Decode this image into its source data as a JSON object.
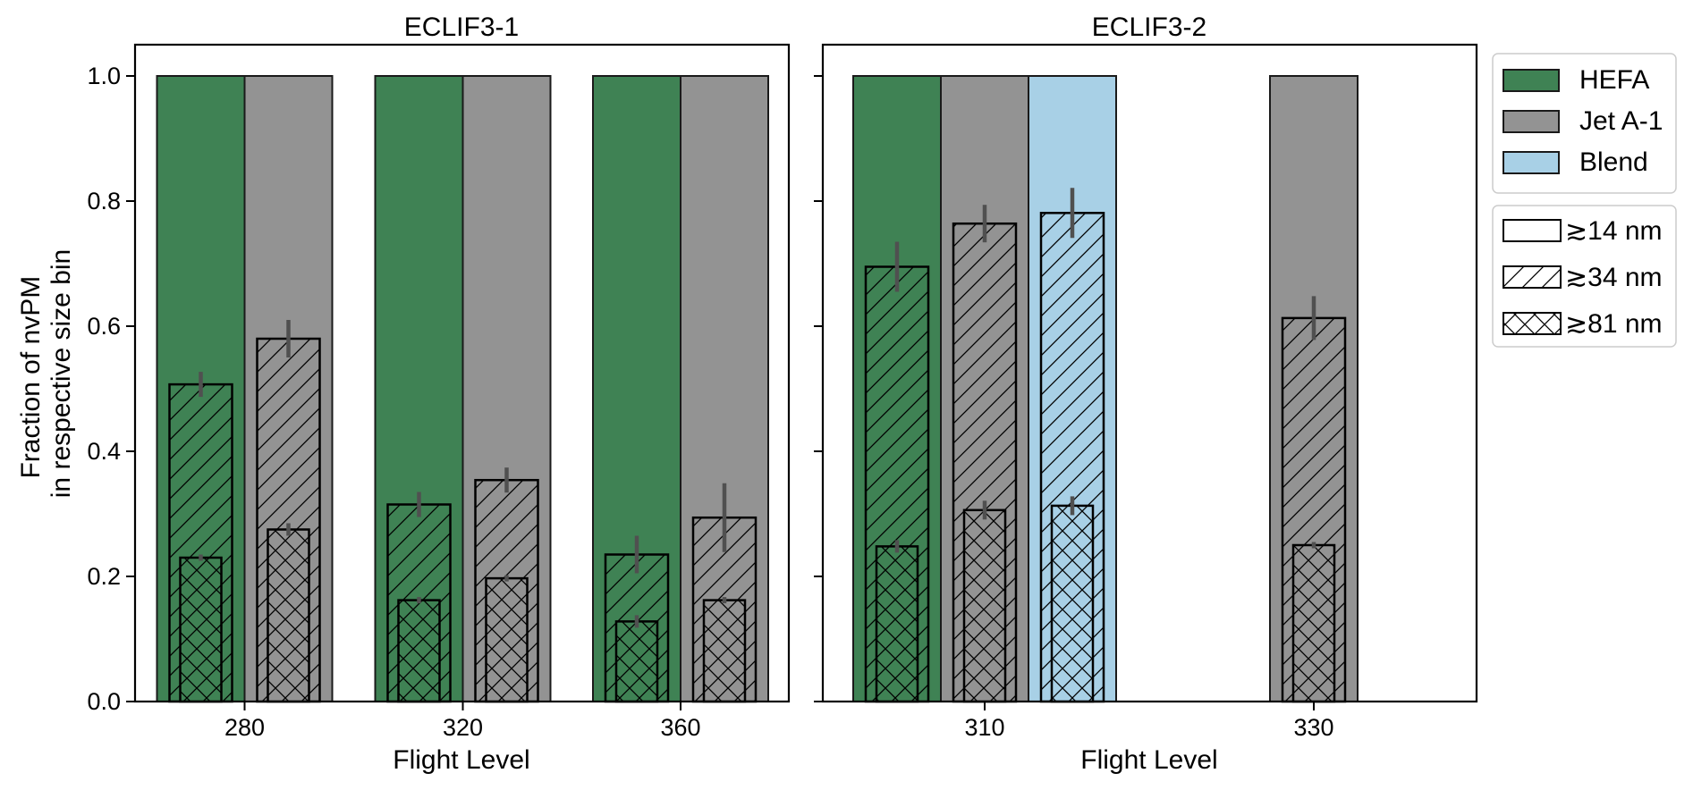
{
  "chart_data": [
    {
      "type": "bar",
      "title": "ECLIF3-1",
      "xlabel": "Flight Level",
      "ylabel": "Fraction of nvPM\nin respective size bin",
      "ylim": [
        0,
        1.05
      ],
      "yticks": [
        "0.0",
        "0.2",
        "0.4",
        "0.6",
        "0.8",
        "1.0"
      ],
      "categories": [
        "280",
        "320",
        "360"
      ],
      "series": [
        {
          "name": "HEFA",
          "values_14nm": [
            1.0,
            1.0,
            1.0
          ],
          "values_34nm": [
            0.507,
            0.315,
            0.235
          ],
          "err_34nm": [
            0.02,
            0.02,
            0.03
          ],
          "values_81nm": [
            0.23,
            0.162,
            0.128
          ],
          "err_81nm": [
            0.005,
            0.005,
            0.01
          ]
        },
        {
          "name": "Jet A-1",
          "values_14nm": [
            1.0,
            1.0,
            1.0
          ],
          "values_34nm": [
            0.58,
            0.354,
            0.294
          ],
          "err_34nm": [
            0.03,
            0.02,
            0.055
          ],
          "values_81nm": [
            0.275,
            0.197,
            0.162
          ],
          "err_81nm": [
            0.01,
            0.005,
            0.005
          ]
        }
      ]
    },
    {
      "type": "bar",
      "title": "ECLIF3-2",
      "xlabel": "Flight Level",
      "ylim": [
        0,
        1.05
      ],
      "categories": [
        "310",
        "330"
      ],
      "series": [
        {
          "name": "HEFA",
          "values_14nm": [
            1.0,
            null
          ],
          "values_34nm": [
            0.695,
            null
          ],
          "err_34nm": [
            0.04,
            null
          ],
          "values_81nm": [
            0.248,
            null
          ],
          "err_81nm": [
            0.01,
            null
          ]
        },
        {
          "name": "Jet A-1",
          "values_14nm": [
            1.0,
            1.0
          ],
          "values_34nm": [
            0.764,
            0.613
          ],
          "err_34nm": [
            0.03,
            0.035
          ],
          "values_81nm": [
            0.306,
            0.25
          ],
          "err_81nm": [
            0.015,
            0.005
          ]
        },
        {
          "name": "Blend",
          "values_14nm": [
            1.0,
            null
          ],
          "values_34nm": [
            0.781,
            null
          ],
          "err_34nm": [
            0.04,
            null
          ],
          "values_81nm": [
            0.313,
            null
          ],
          "err_81nm": [
            0.015,
            null
          ]
        }
      ]
    }
  ],
  "legend": {
    "placement": "outside-right",
    "fuel_entries": [
      {
        "label": "HEFA",
        "color": "#3f8254"
      },
      {
        "label": "Jet A-1",
        "color": "#939393"
      },
      {
        "label": "Blend",
        "color": "#a8d0e6"
      }
    ],
    "size_entries": [
      {
        "label": "≳14 nm",
        "hatch": "none"
      },
      {
        "label": "≳34 nm",
        "hatch": "diagonal"
      },
      {
        "label": "≳81 nm",
        "hatch": "cross"
      }
    ]
  },
  "colors": {
    "hefa": "#3f8254",
    "jet": "#939393",
    "blend": "#a8d0e6",
    "error": "#505050"
  }
}
